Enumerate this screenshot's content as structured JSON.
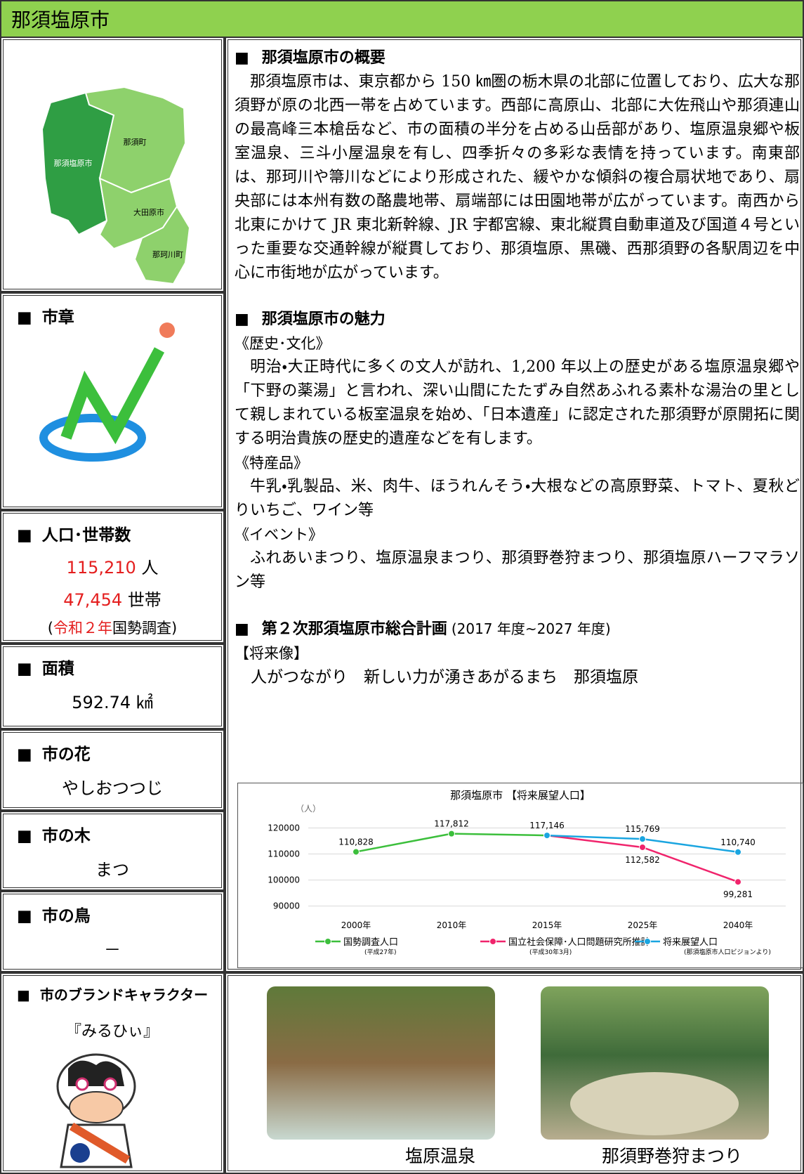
{
  "header": {
    "title": "那須塩原市"
  },
  "map": {
    "labels": [
      "那須町",
      "那須塩原市",
      "大田原市",
      "那珂川町"
    ]
  },
  "left": {
    "emblem": {
      "heading": "市章"
    },
    "population": {
      "heading": "人口･世帯数",
      "people_value": "115,210",
      "people_unit": "人",
      "households_value": "47,454",
      "households_unit": "世帯",
      "source_pre": "(",
      "source_era": "令和２年",
      "source_post": "国勢調査)"
    },
    "area": {
      "heading": "面積",
      "value": "592.74 ㎢"
    },
    "flower": {
      "heading": "市の花",
      "value": "やしおつつじ"
    },
    "tree": {
      "heading": "市の木",
      "value": "まつ"
    },
    "bird": {
      "heading": "市の鳥",
      "value": "－"
    },
    "character": {
      "heading": "市のブランドキャラクター",
      "name": "『みるひぃ』"
    }
  },
  "overview": {
    "heading": "那須塩原市の概要",
    "text": "那須塩原市は、東京都から 150 ㎞圏の栃木県の北部に位置しており、広大な那須野が原の北西一帯を占めています。西部に高原山、北部に大佐飛山や那須連山の最高峰三本槍岳など、市の面積の半分を占める山岳部があり、塩原温泉郷や板室温泉、三斗小屋温泉を有し、四季折々の多彩な表情を持っています。南東部は、那珂川や箒川などにより形成された、緩やかな傾斜の複合扇状地であり、扇央部には本州有数の酪農地帯、扇端部には田園地帯が広がっています。南西から北東にかけて JR 東北新幹線、JR 宇都宮線、東北縦貫自動車道及び国道４号といった重要な交通幹線が縦貫しており、那須塩原、黒磯、西那須野の各駅周辺を中心に市街地が広がっています。"
  },
  "appeal": {
    "heading": "那須塩原市の魅力",
    "items": [
      {
        "title": "《歴史･文化》",
        "text": "明治・大正時代に多くの文人が訪れ、1,200 年以上の歴史がある塩原温泉郷や「下野の薬湯」と言われ、深い山間にたたずみ自然あふれる素朴な湯治の里として親しまれている板室温泉を始め、「日本遺産」に認定された那須野が原開拓に関する明治貴族の歴史的遺産などを有します。"
      },
      {
        "title": "《特産品》",
        "text": "牛乳・乳製品、米、肉牛、ほうれんそう・大根などの高原野菜、トマト、夏秋どりいちご、ワイン等"
      },
      {
        "title": "《イベント》",
        "text": "ふれあいまつり、塩原温泉まつり、那須野巻狩まつり、那須塩原ハーフマラソン等"
      }
    ]
  },
  "plan": {
    "heading": "第２次那須塩原市総合計画",
    "period": "(2017 年度~2027 年度)",
    "vision_label": "【将来像】",
    "vision": "人がつながり　新しい力が湧きあがるまち　那須塩原"
  },
  "chart_data": {
    "type": "line",
    "title": "那須塩原市 【将来展望人口】",
    "y_unit": "（人）",
    "categories": [
      "2000年",
      "2010年",
      "2015年",
      "2025年",
      "2040年"
    ],
    "ylim": [
      88000,
      125000
    ],
    "yticks": [
      90000,
      100000,
      110000,
      120000
    ],
    "grid": true,
    "series": [
      {
        "name": "国勢調査人口",
        "note": "(平成27年)",
        "color": "#3cbf3c",
        "values": [
          110828,
          117812,
          117146,
          null,
          null
        ],
        "value_labels": [
          "110,828",
          "117,812",
          "117,146",
          null,
          null
        ]
      },
      {
        "name": "国立社会保障･人口問題研究所推計",
        "note": "(平成30年3月)",
        "color": "#f0246c",
        "values": [
          null,
          null,
          117146,
          112582,
          99281
        ],
        "value_labels": [
          null,
          null,
          null,
          "112,582",
          "99,281"
        ]
      },
      {
        "name": "将来展望人口",
        "note": "(那須塩原市人口ビジョンより)",
        "color": "#1aa5e0",
        "values": [
          null,
          null,
          117146,
          115769,
          110740
        ],
        "value_labels": [
          null,
          null,
          null,
          "115,769",
          "110,740"
        ]
      }
    ]
  },
  "photos": [
    "塩原温泉",
    "那須野巻狩まつり"
  ]
}
